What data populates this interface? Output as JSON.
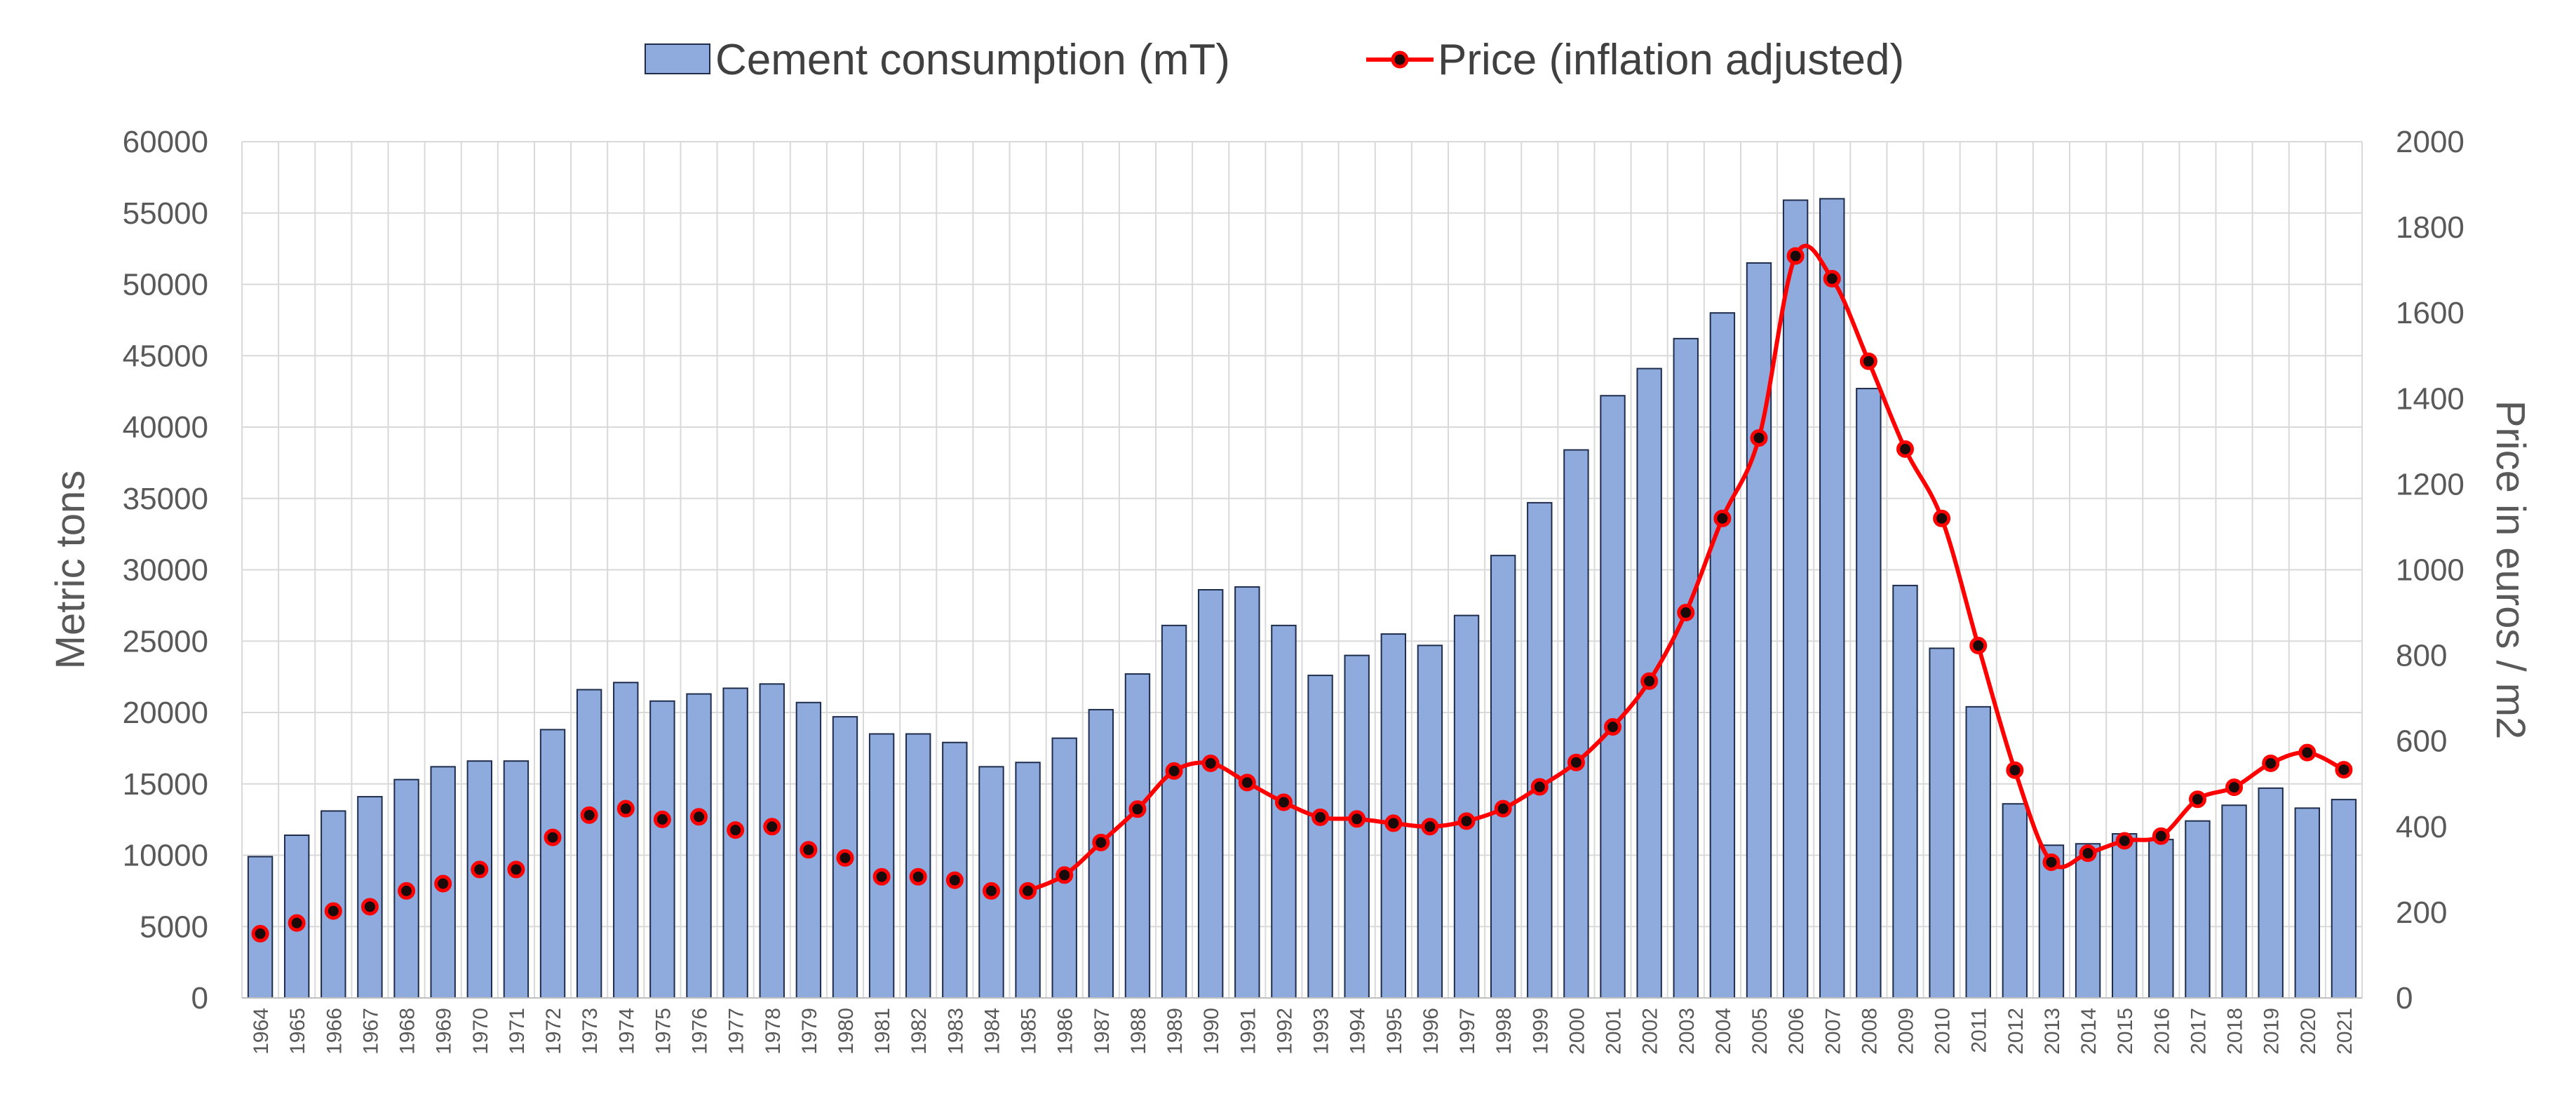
{
  "chart_data": {
    "type": "bar",
    "categories": [
      "1964",
      "1965",
      "1966",
      "1967",
      "1968",
      "1969",
      "1970",
      "1971",
      "1972",
      "1973",
      "1974",
      "1975",
      "1976",
      "1977",
      "1978",
      "1979",
      "1980",
      "1981",
      "1982",
      "1983",
      "1984",
      "1985",
      "1986",
      "1987",
      "1988",
      "1989",
      "1990",
      "1991",
      "1992",
      "1993",
      "1994",
      "1995",
      "1996",
      "1997",
      "1998",
      "1999",
      "2000",
      "2001",
      "2002",
      "2003",
      "2004",
      "2005",
      "2006",
      "2007",
      "2008",
      "2009",
      "2010",
      "2011",
      "2012",
      "2013",
      "2014",
      "2015",
      "2016",
      "2017",
      "2018",
      "2019",
      "2020",
      "2021"
    ],
    "series": [
      {
        "name": "Cement consumption (mT)",
        "type": "bar",
        "axis": "left",
        "values": [
          9900,
          11400,
          13100,
          14100,
          15300,
          16200,
          16600,
          16600,
          18800,
          21600,
          22100,
          20800,
          21300,
          21700,
          22000,
          20700,
          19700,
          18500,
          18500,
          17900,
          16200,
          16500,
          18200,
          20200,
          22700,
          26100,
          28600,
          28800,
          26100,
          22600,
          24000,
          25500,
          24700,
          26800,
          31000,
          34700,
          38400,
          42200,
          44100,
          46200,
          48000,
          51500,
          55900,
          56000,
          42700,
          28900,
          24500,
          20400,
          13600,
          10700,
          10800,
          11500,
          11100,
          12400,
          13500,
          14700,
          13300,
          13900
        ],
        "color": "#8faadc",
        "stroke": "#1f2d4d"
      },
      {
        "name": "Price (inflation adjusted)",
        "type": "line",
        "axis": "right",
        "values": [
          150,
          175,
          203,
          213,
          250,
          267,
          300,
          300,
          375,
          427,
          442,
          417,
          423,
          392,
          400,
          346,
          327,
          283,
          283,
          275,
          250,
          250,
          287,
          363,
          441,
          530,
          548,
          503,
          457,
          422,
          418,
          408,
          400,
          413,
          442,
          493,
          550,
          633,
          740,
          900,
          1120,
          1308,
          1733,
          1680,
          1487,
          1282,
          1120,
          823,
          532,
          317,
          338,
          367,
          378,
          464,
          492,
          548,
          573,
          533
        ],
        "line_start_index": 21,
        "color": "#ff0000",
        "marker_fill": "#1a0a0a"
      }
    ],
    "y_left": {
      "label": "Metric tons",
      "min": 0,
      "max": 60000,
      "ticks": [
        "0",
        "5000",
        "10000",
        "15000",
        "20000",
        "25000",
        "30000",
        "35000",
        "40000",
        "45000",
        "50000",
        "55000",
        "60000"
      ]
    },
    "y_right": {
      "label": "Price in euros / m2",
      "min": 0,
      "max": 2000,
      "ticks": [
        "0",
        "200",
        "400",
        "600",
        "800",
        "1000",
        "1200",
        "1400",
        "1600",
        "1800",
        "2000"
      ]
    },
    "grid": true,
    "legend_position": "top-center"
  }
}
